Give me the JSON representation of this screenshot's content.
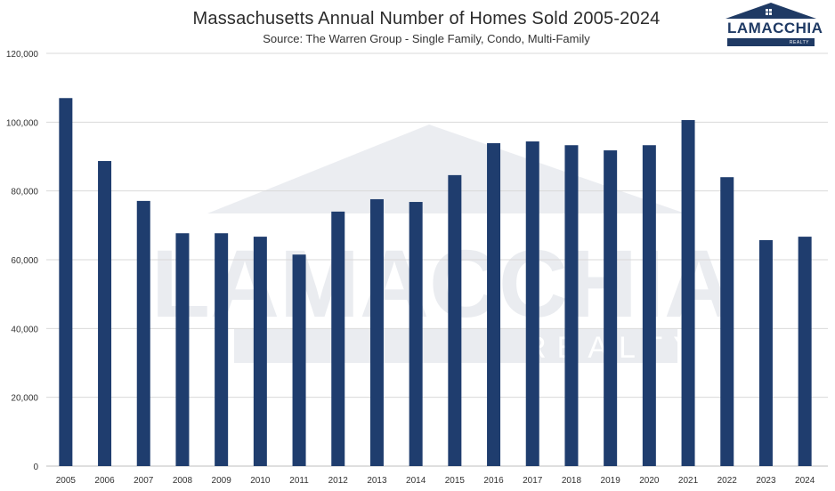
{
  "chart_data": {
    "type": "bar",
    "title": "Massachusetts Annual Number of Homes Sold 2005-2024",
    "subtitle": "Source: The Warren Group - Single Family, Condo, Multi-Family",
    "xlabel": "",
    "ylabel": "",
    "ylim": [
      0,
      120000
    ],
    "yticks": [
      "0",
      "20,000",
      "40,000",
      "60,000",
      "80,000",
      "100,000",
      "120,000"
    ],
    "ytick_values": [
      0,
      20000,
      40000,
      60000,
      80000,
      100000,
      120000
    ],
    "grid": true,
    "categories": [
      "2005",
      "2006",
      "2007",
      "2008",
      "2009",
      "2010",
      "2011",
      "2012",
      "2013",
      "2014",
      "2015",
      "2016",
      "2017",
      "2018",
      "2019",
      "2020",
      "2021",
      "2022",
      "2023",
      "2024"
    ],
    "values": [
      107000,
      88700,
      77100,
      67700,
      67700,
      66700,
      61500,
      74000,
      77600,
      76800,
      84600,
      93900,
      94400,
      93300,
      91800,
      93300,
      100600,
      84000,
      65700,
      66700
    ],
    "bar_color": "#1f3d6e",
    "grid_color": "#d9d9d9"
  },
  "logo": {
    "name": "LAMACCHIA",
    "sub": "REALTY",
    "color": "#1f3a64"
  },
  "watermark": {
    "name": "LAMACCHIA",
    "sub": "REALTY"
  }
}
